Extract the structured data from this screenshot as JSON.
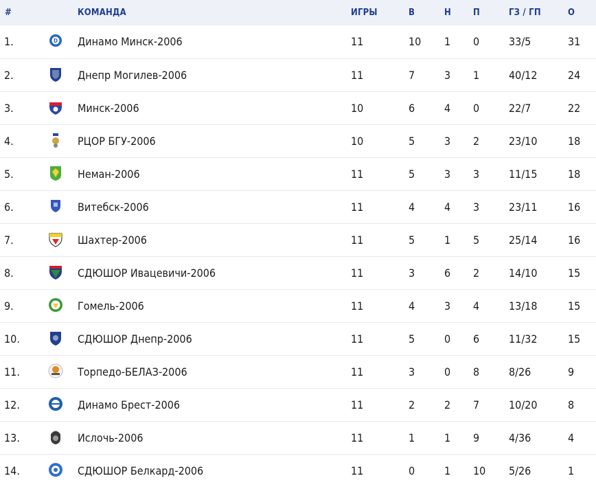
{
  "headers": {
    "pos": "#",
    "team": "КОМАНДА",
    "games": "ИГРЫ",
    "w": "В",
    "d": "Н",
    "l": "П",
    "goals": "ГЗ / ГП",
    "pts": "О"
  },
  "rows": [
    {
      "pos": "1.",
      "team": "Динамо Минск-2006",
      "games": "11",
      "w": "10",
      "d": "1",
      "l": "0",
      "goals": "33/5",
      "pts": "31",
      "logo_icon": "dinamo-minsk-crest-icon",
      "logo_color": "#2a66c4"
    },
    {
      "pos": "2.",
      "team": "Днепр Могилев-2006",
      "games": "11",
      "w": "7",
      "d": "3",
      "l": "1",
      "goals": "40/12",
      "pts": "24",
      "logo_icon": "dnepr-mogilev-crest-icon",
      "logo_color": "#22408f"
    },
    {
      "pos": "3.",
      "team": "Минск-2006",
      "games": "10",
      "w": "6",
      "d": "4",
      "l": "0",
      "goals": "22/7",
      "pts": "22",
      "logo_icon": "minsk-crest-icon",
      "logo_color": "#d4203a"
    },
    {
      "pos": "4.",
      "team": "РЦОР БГУ-2006",
      "games": "10",
      "w": "5",
      "d": "3",
      "l": "2",
      "goals": "23/10",
      "pts": "18",
      "logo_icon": "rcor-bgu-crest-icon",
      "logo_color": "#c9a640"
    },
    {
      "pos": "5.",
      "team": "Неман-2006",
      "games": "11",
      "w": "5",
      "d": "3",
      "l": "3",
      "goals": "11/15",
      "pts": "18",
      "logo_icon": "neman-crest-icon",
      "logo_color": "#4fae3a"
    },
    {
      "pos": "6.",
      "team": "Витебск-2006",
      "games": "11",
      "w": "4",
      "d": "4",
      "l": "3",
      "goals": "23/11",
      "pts": "16",
      "logo_icon": "vitebsk-crest-icon",
      "logo_color": "#3456c0"
    },
    {
      "pos": "7.",
      "team": "Шахтер-2006",
      "games": "11",
      "w": "5",
      "d": "1",
      "l": "5",
      "goals": "25/14",
      "pts": "16",
      "logo_icon": "shakhter-crest-icon",
      "logo_color": "#e02a2a"
    },
    {
      "pos": "8.",
      "team": "СДЮШОР Ивацевичи-2006",
      "games": "11",
      "w": "3",
      "d": "6",
      "l": "2",
      "goals": "14/10",
      "pts": "15",
      "logo_icon": "ivatsevichi-crest-icon",
      "logo_color": "#2d8a3e"
    },
    {
      "pos": "9.",
      "team": "Гомель-2006",
      "games": "11",
      "w": "4",
      "d": "3",
      "l": "4",
      "goals": "13/18",
      "pts": "15",
      "logo_icon": "gomel-crest-icon",
      "logo_color": "#3a9a3a"
    },
    {
      "pos": "10.",
      "team": "СДЮШОР Днепр-2006",
      "games": "11",
      "w": "5",
      "d": "0",
      "l": "6",
      "goals": "11/32",
      "pts": "15",
      "logo_icon": "sdyushor-dnepr-crest-icon",
      "logo_color": "#22408f"
    },
    {
      "pos": "11.",
      "team": "Торпедо-БЕЛАЗ-2006",
      "games": "11",
      "w": "3",
      "d": "0",
      "l": "8",
      "goals": "8/26",
      "pts": "9",
      "logo_icon": "torpedo-belaz-crest-icon",
      "logo_color": "#e08a1e"
    },
    {
      "pos": "12.",
      "team": "Динамо Брест-2006",
      "games": "11",
      "w": "2",
      "d": "2",
      "l": "7",
      "goals": "10/20",
      "pts": "8",
      "logo_icon": "dinamo-brest-crest-icon",
      "logo_color": "#1f5fa8"
    },
    {
      "pos": "13.",
      "team": "Ислочь-2006",
      "games": "11",
      "w": "1",
      "d": "1",
      "l": "9",
      "goals": "4/36",
      "pts": "4",
      "logo_icon": "isloch-crest-icon",
      "logo_color": "#3a3a3a"
    },
    {
      "pos": "14.",
      "team": "СДЮШОР Белкард-2006",
      "games": "11",
      "w": "0",
      "d": "1",
      "l": "10",
      "goals": "5/26",
      "pts": "1",
      "logo_icon": "belkard-crest-icon",
      "logo_color": "#2f6fd0"
    }
  ],
  "colors": {
    "header_bg": "#eef1f7",
    "header_text": "#1f3f8f",
    "row_border": "#e6e9ef"
  }
}
